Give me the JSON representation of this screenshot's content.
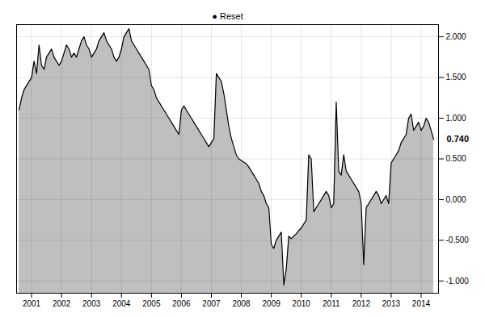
{
  "chart_data": {
    "type": "area",
    "x": [
      2000.583,
      2000.667,
      2000.75,
      2000.833,
      2000.917,
      2001.0,
      2001.083,
      2001.167,
      2001.25,
      2001.333,
      2001.417,
      2001.5,
      2001.583,
      2001.667,
      2001.75,
      2001.833,
      2001.917,
      2002.0,
      2002.083,
      2002.167,
      2002.25,
      2002.333,
      2002.417,
      2002.5,
      2002.583,
      2002.667,
      2002.75,
      2002.833,
      2002.917,
      2003.0,
      2003.083,
      2003.167,
      2003.25,
      2003.333,
      2003.417,
      2003.5,
      2003.583,
      2003.667,
      2003.75,
      2003.833,
      2003.917,
      2004.0,
      2004.083,
      2004.167,
      2004.25,
      2004.333,
      2004.417,
      2004.5,
      2004.583,
      2004.667,
      2004.75,
      2004.833,
      2004.917,
      2005.0,
      2005.083,
      2005.167,
      2005.25,
      2005.333,
      2005.417,
      2005.5,
      2005.583,
      2005.667,
      2005.75,
      2005.833,
      2005.917,
      2006.0,
      2006.083,
      2006.167,
      2006.25,
      2006.333,
      2006.417,
      2006.5,
      2006.583,
      2006.667,
      2006.75,
      2006.833,
      2006.917,
      2007.0,
      2007.083,
      2007.167,
      2007.25,
      2007.333,
      2007.417,
      2007.5,
      2007.583,
      2007.667,
      2007.75,
      2007.833,
      2007.917,
      2008.0,
      2008.083,
      2008.167,
      2008.25,
      2008.333,
      2008.417,
      2008.5,
      2008.583,
      2008.667,
      2008.75,
      2008.833,
      2008.917,
      2009.0,
      2009.083,
      2009.167,
      2009.25,
      2009.333,
      2009.417,
      2009.5,
      2009.583,
      2009.667,
      2009.75,
      2009.833,
      2009.917,
      2010.0,
      2010.083,
      2010.167,
      2010.25,
      2010.333,
      2010.417,
      2010.5,
      2010.583,
      2010.667,
      2010.75,
      2010.833,
      2010.917,
      2011.0,
      2011.083,
      2011.167,
      2011.25,
      2011.333,
      2011.417,
      2011.5,
      2011.583,
      2011.667,
      2011.75,
      2011.833,
      2011.917,
      2012.0,
      2012.083,
      2012.167,
      2012.25,
      2012.333,
      2012.417,
      2012.5,
      2012.583,
      2012.667,
      2012.75,
      2012.833,
      2012.917,
      2013.0,
      2013.083,
      2013.167,
      2013.25,
      2013.333,
      2013.417,
      2013.5,
      2013.583,
      2013.667,
      2013.75,
      2013.833,
      2013.917,
      2014.0,
      2014.083,
      2014.167,
      2014.25,
      2014.333,
      2014.417
    ],
    "values": [
      1.1,
      1.25,
      1.35,
      1.4,
      1.45,
      1.5,
      1.7,
      1.55,
      1.9,
      1.65,
      1.6,
      1.75,
      1.8,
      1.85,
      1.75,
      1.7,
      1.65,
      1.7,
      1.8,
      1.9,
      1.85,
      1.75,
      1.8,
      1.75,
      1.85,
      1.95,
      2.0,
      1.9,
      1.85,
      1.75,
      1.8,
      1.85,
      1.95,
      2.0,
      2.05,
      1.95,
      1.9,
      1.85,
      1.75,
      1.7,
      1.75,
      1.85,
      2.0,
      2.05,
      2.1,
      1.95,
      1.9,
      1.85,
      1.8,
      1.75,
      1.7,
      1.65,
      1.6,
      1.4,
      1.35,
      1.25,
      1.2,
      1.15,
      1.1,
      1.05,
      1.0,
      0.95,
      0.9,
      0.85,
      0.8,
      1.1,
      1.15,
      1.1,
      1.05,
      1.0,
      0.95,
      0.9,
      0.85,
      0.8,
      0.75,
      0.7,
      0.65,
      0.7,
      0.75,
      1.55,
      1.5,
      1.45,
      1.3,
      1.1,
      0.9,
      0.75,
      0.65,
      0.55,
      0.5,
      0.48,
      0.46,
      0.44,
      0.4,
      0.35,
      0.3,
      0.25,
      0.2,
      0.1,
      0.05,
      -0.05,
      -0.1,
      -0.55,
      -0.6,
      -0.5,
      -0.45,
      -0.4,
      -1.05,
      -0.85,
      -0.45,
      -0.48,
      -0.45,
      -0.42,
      -0.38,
      -0.35,
      -0.3,
      -0.25,
      0.55,
      0.5,
      -0.15,
      -0.1,
      -0.05,
      0.0,
      0.05,
      0.1,
      0.05,
      -0.1,
      -0.05,
      1.2,
      0.35,
      0.3,
      0.55,
      0.35,
      0.3,
      0.25,
      0.2,
      0.15,
      0.1,
      -0.05,
      -0.8,
      -0.1,
      -0.05,
      0.0,
      0.05,
      0.1,
      0.05,
      -0.05,
      0.0,
      0.05,
      -0.05,
      0.45,
      0.5,
      0.55,
      0.6,
      0.7,
      0.75,
      0.8,
      1.0,
      1.05,
      0.85,
      0.9,
      0.95,
      0.85,
      0.9,
      1.0,
      0.95,
      0.85,
      0.74
    ],
    "xlim": [
      2000.5,
      2014.58
    ],
    "xticks": [
      2001,
      2002,
      2003,
      2004,
      2005,
      2006,
      2007,
      2008,
      2009,
      2010,
      2011,
      2012,
      2013,
      2014
    ],
    "ylim": [
      -1.15,
      2.15
    ],
    "yticks": [
      {
        "value": -1.0,
        "label": "-1.000"
      },
      {
        "value": -0.5,
        "label": "-0.500"
      },
      {
        "value": 0.0,
        "label": "0.000"
      },
      {
        "value": 0.5,
        "label": "0.500"
      },
      {
        "value": 1.0,
        "label": "1.000"
      },
      {
        "value": 1.5,
        "label": "1.500"
      },
      {
        "value": 2.0,
        "label": "2.000"
      }
    ],
    "annotations": [
      {
        "text": "0.740",
        "y": 0.74
      },
      {
        "text": "● Reset"
      }
    ],
    "grid": true
  }
}
